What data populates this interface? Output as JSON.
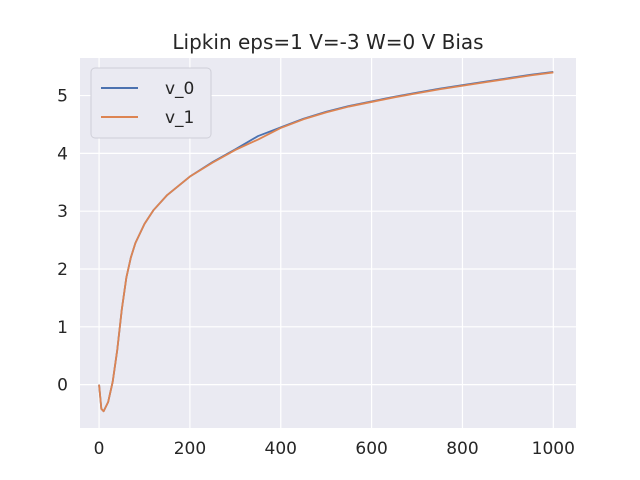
{
  "chart_data": {
    "type": "line",
    "title": "Lipkin eps=1 V=-3 W=0 V Bias",
    "xlabel": "",
    "ylabel": "",
    "xlim": [
      -42,
      1050
    ],
    "ylim": [
      -0.75,
      5.65
    ],
    "xticks": [
      0,
      200,
      400,
      600,
      800,
      1000
    ],
    "yticks": [
      0,
      1,
      2,
      3,
      4,
      5
    ],
    "grid": true,
    "legend": "top-left",
    "background": "#eaeaf2",
    "x": [
      0,
      5,
      10,
      20,
      30,
      40,
      50,
      60,
      70,
      80,
      100,
      120,
      150,
      200,
      250,
      300,
      350,
      400,
      450,
      500,
      550,
      600,
      650,
      700,
      750,
      800,
      850,
      900,
      950,
      1000
    ],
    "series": [
      {
        "name": "v_0",
        "color": "#4c72b0",
        "values": [
          0.0,
          -0.42,
          -0.46,
          -0.3,
          0.05,
          0.6,
          1.3,
          1.85,
          2.2,
          2.45,
          2.78,
          3.02,
          3.28,
          3.6,
          3.85,
          4.07,
          4.3,
          4.45,
          4.6,
          4.72,
          4.82,
          4.9,
          4.98,
          5.05,
          5.12,
          5.18,
          5.24,
          5.3,
          5.36,
          5.41
        ]
      },
      {
        "name": "v_1",
        "color": "#dd8452",
        "values": [
          0.0,
          -0.42,
          -0.46,
          -0.3,
          0.05,
          0.6,
          1.3,
          1.85,
          2.2,
          2.45,
          2.78,
          3.02,
          3.28,
          3.6,
          3.84,
          4.06,
          4.24,
          4.44,
          4.59,
          4.71,
          4.81,
          4.89,
          4.97,
          5.04,
          5.11,
          5.17,
          5.23,
          5.29,
          5.35,
          5.4
        ]
      }
    ]
  }
}
